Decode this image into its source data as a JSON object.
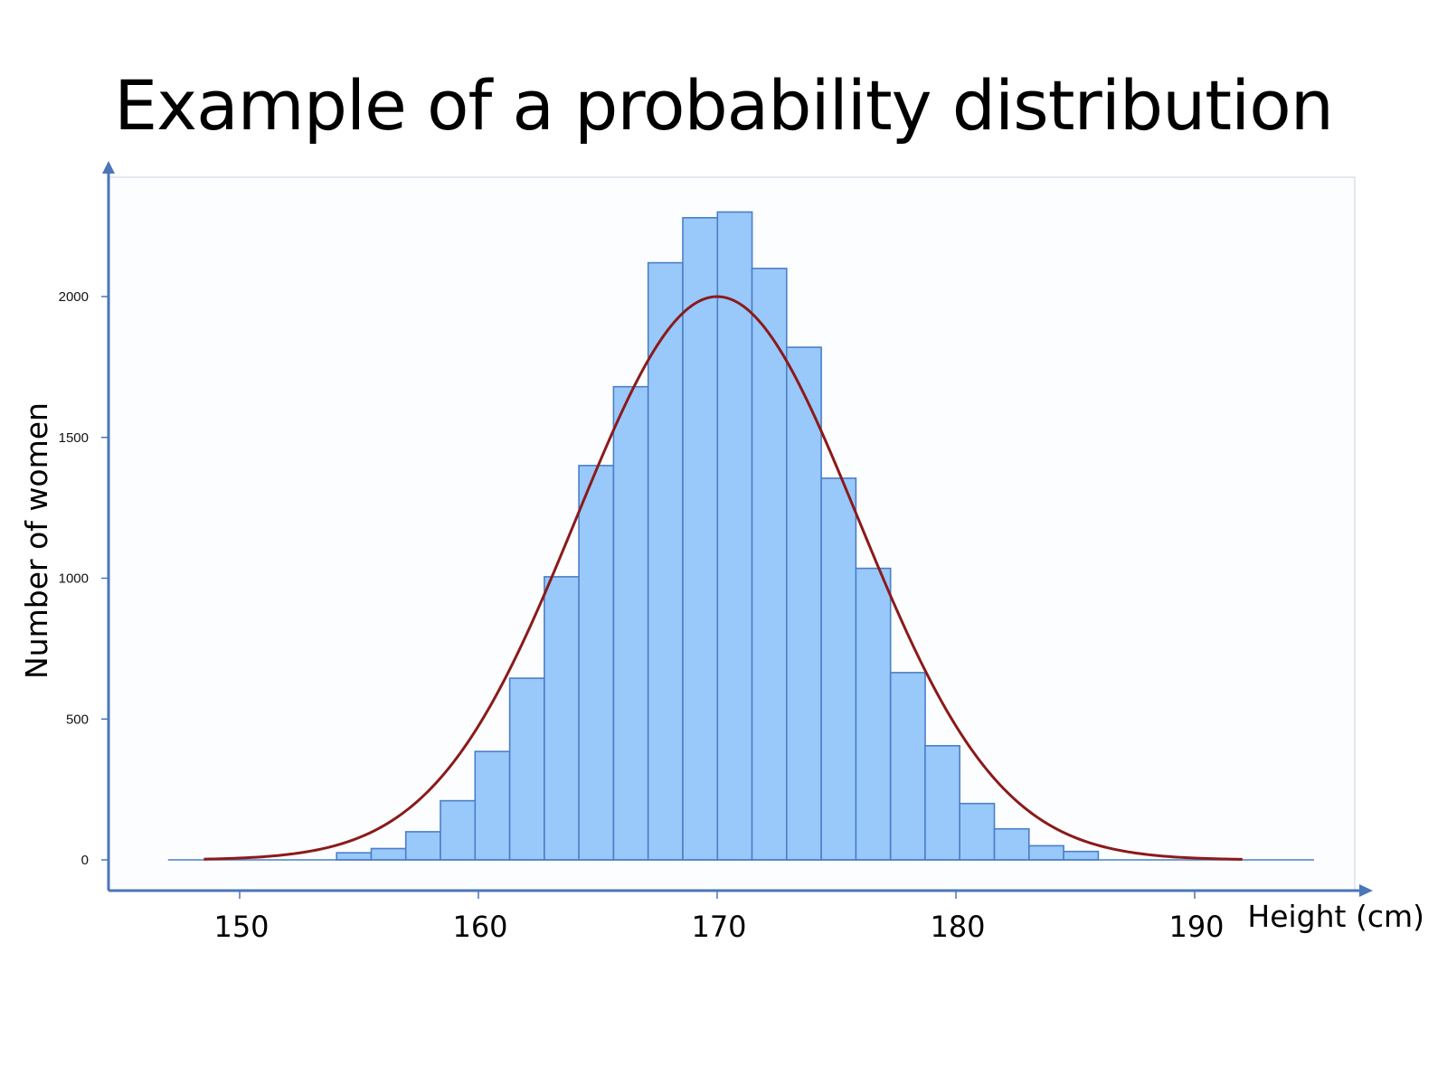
{
  "slide": {
    "title": "Example of a probability distribution"
  },
  "chart_data": {
    "type": "bar",
    "title": "Example of a probability distribution",
    "xlabel": "Height (cm)",
    "ylabel": "Number of women",
    "xlim": [
      144.5,
      192.5
    ],
    "ylim": [
      0,
      2420
    ],
    "x_ticks": [
      150,
      160,
      170,
      180,
      190
    ],
    "y_ticks": [
      0,
      500,
      1000,
      1500,
      2000
    ],
    "bin_width": 1.45,
    "bins": [
      {
        "x0": 154.06,
        "value": 25
      },
      {
        "x0": 155.51,
        "value": 40
      },
      {
        "x0": 156.96,
        "value": 100
      },
      {
        "x0": 158.41,
        "value": 210
      },
      {
        "x0": 159.86,
        "value": 385
      },
      {
        "x0": 161.31,
        "value": 645
      },
      {
        "x0": 162.76,
        "value": 1005
      },
      {
        "x0": 164.21,
        "value": 1400
      },
      {
        "x0": 165.66,
        "value": 1680
      },
      {
        "x0": 167.11,
        "value": 2120
      },
      {
        "x0": 168.56,
        "value": 2280
      },
      {
        "x0": 170.01,
        "value": 2300
      },
      {
        "x0": 171.46,
        "value": 2100
      },
      {
        "x0": 172.91,
        "value": 1820
      },
      {
        "x0": 174.36,
        "value": 1355
      },
      {
        "x0": 175.81,
        "value": 1035
      },
      {
        "x0": 177.26,
        "value": 665
      },
      {
        "x0": 178.71,
        "value": 405
      },
      {
        "x0": 180.16,
        "value": 200
      },
      {
        "x0": 181.61,
        "value": 110
      },
      {
        "x0": 183.06,
        "value": 50
      },
      {
        "x0": 184.51,
        "value": 30
      }
    ],
    "curve": {
      "type": "normal",
      "mean": 170,
      "sd": 5.9,
      "peak": 2000,
      "x_range": [
        148.5,
        192
      ]
    },
    "baseline_range": [
      147,
      195
    ],
    "grid": false,
    "colors": {
      "bar_fill": "#99c8fb",
      "bar_stroke": "#4a7fc6",
      "curve": "#8b1a1a",
      "axis": "#4a76b8",
      "plot_border": "#c9d3e0"
    }
  }
}
